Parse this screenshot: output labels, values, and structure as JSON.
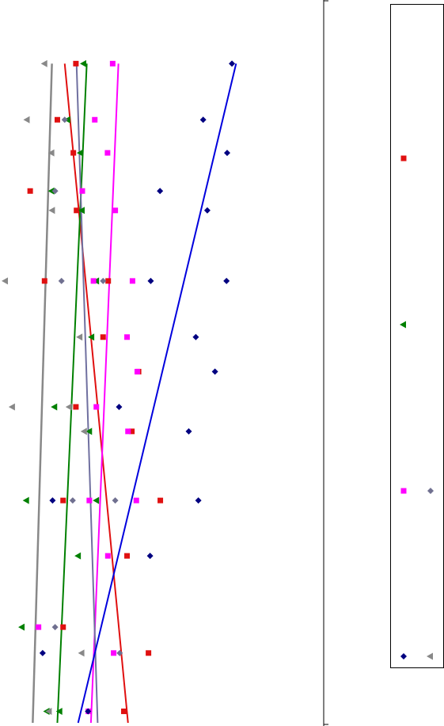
{
  "chart_data": {
    "type": "scatter",
    "title": "",
    "xlabel": "",
    "ylabel": "",
    "xlim": [
      0,
      100
    ],
    "ylim": [
      0,
      100
    ],
    "grid": false,
    "legend_position": "right",
    "series": [
      {
        "color": "#e01010",
        "marker": "square",
        "points": [
          [
            22.5,
            91.6
          ],
          [
            16.7,
            83.8
          ],
          [
            21.7,
            79.2
          ],
          [
            8.2,
            73.9
          ],
          [
            22.7,
            71.2
          ],
          [
            12.7,
            61.4
          ],
          [
            32.6,
            61.4
          ],
          [
            31.0,
            53.6
          ],
          [
            42.1,
            48.8
          ],
          [
            22.5,
            43.9
          ],
          [
            40.0,
            40.5
          ],
          [
            48.9,
            30.9
          ],
          [
            18.5,
            30.9
          ],
          [
            38.5,
            23.2
          ],
          [
            18.5,
            13.3
          ],
          [
            45.2,
            9.7
          ],
          [
            37.5,
            1.6
          ]
        ],
        "trend": [
          [
            19.0,
            91.6
          ],
          [
            38.8,
            0
          ]
        ]
      },
      {
        "color": "#008000",
        "marker": "triangle-left",
        "points": [
          [
            25.0,
            91.6
          ],
          [
            20.0,
            83.8
          ],
          [
            24.0,
            79.2
          ],
          [
            15.0,
            73.9
          ],
          [
            24.5,
            71.2
          ],
          [
            29.0,
            61.4
          ],
          [
            27.5,
            53.6
          ],
          [
            15.9,
            43.9
          ],
          [
            26.8,
            40.5
          ],
          [
            7.1,
            30.9
          ],
          [
            29.0,
            30.9
          ],
          [
            23.3,
            23.2
          ],
          [
            5.7,
            13.3
          ],
          [
            17.5,
            1.6
          ],
          [
            13.5,
            1.6
          ]
        ],
        "trend": [
          [
            25.9,
            91.6
          ],
          [
            16.7,
            0
          ]
        ]
      },
      {
        "color": "#ff00ff",
        "marker": "square",
        "points": [
          [
            34.0,
            91.6
          ],
          [
            28.4,
            83.8
          ],
          [
            32.4,
            79.2
          ],
          [
            24.5,
            73.9
          ],
          [
            34.8,
            71.2
          ],
          [
            28.0,
            61.4
          ],
          [
            40.2,
            61.4
          ],
          [
            38.5,
            53.6
          ],
          [
            41.7,
            48.8
          ],
          [
            28.9,
            43.9
          ],
          [
            38.8,
            40.5
          ],
          [
            26.7,
            30.9
          ],
          [
            41.4,
            30.9
          ],
          [
            32.5,
            23.2
          ],
          [
            10.8,
            13.3
          ],
          [
            34.3,
            9.7
          ],
          [
            26.4,
            1.6
          ]
        ],
        "trend": [
          [
            35.8,
            91.6
          ],
          [
            27.2,
            0
          ]
        ]
      },
      {
        "color": "#707090",
        "marker": "diamond",
        "points": [
          [
            19.0,
            83.8
          ],
          [
            16.0,
            73.9
          ],
          [
            18.0,
            61.4
          ],
          [
            31.0,
            61.4
          ],
          [
            21.5,
            30.9
          ],
          [
            34.8,
            30.9
          ],
          [
            16.0,
            13.3
          ],
          [
            36.2,
            9.7
          ]
        ],
        "trend": [
          [
            22.7,
            91.6
          ],
          [
            29.3,
            0
          ]
        ]
      },
      {
        "color": "#000080",
        "marker": "diamond",
        "points": [
          [
            71.3,
            91.6
          ],
          [
            62.3,
            83.8
          ],
          [
            69.8,
            79.2
          ],
          [
            48.8,
            73.9
          ],
          [
            63.6,
            71.2
          ],
          [
            45.9,
            61.4
          ],
          [
            69.6,
            61.4
          ],
          [
            60.0,
            53.6
          ],
          [
            66.0,
            48.8
          ],
          [
            36.0,
            43.9
          ],
          [
            57.8,
            40.5
          ],
          [
            15.2,
            30.9
          ],
          [
            60.8,
            30.9
          ],
          [
            45.7,
            23.2
          ],
          [
            12.1,
            9.7
          ],
          [
            26.3,
            1.6
          ]
        ],
        "trend": [
          [
            72.6,
            91.6
          ],
          [
            23.2,
            0
          ]
        ]
      },
      {
        "color": "#888888",
        "marker": "triangle-left",
        "points": [
          [
            12.8,
            91.6
          ],
          [
            7.3,
            83.8
          ],
          [
            15.0,
            79.2
          ],
          [
            15.2,
            71.2
          ],
          [
            0.5,
            61.4
          ],
          [
            23.8,
            53.6
          ],
          [
            2.7,
            43.9
          ],
          [
            20.5,
            43.9
          ],
          [
            25.2,
            40.5
          ],
          [
            24.4,
            9.7
          ],
          [
            14.2,
            1.6
          ]
        ],
        "trend": [
          [
            15.0,
            91.6
          ],
          [
            9.0,
            0
          ]
        ]
      }
    ],
    "legend_entries": [
      {
        "markers": [
          {
            "color": "#e01010",
            "marker": "square"
          }
        ]
      },
      {
        "markers": [
          {
            "color": "#008000",
            "marker": "triangle-left"
          }
        ]
      },
      {
        "markers": [
          {
            "color": "#ff00ff",
            "marker": "square"
          },
          {
            "color": "#707090",
            "marker": "diamond"
          }
        ]
      },
      {
        "markers": [
          {
            "color": "#000080",
            "marker": "diamond"
          },
          {
            "color": "#888888",
            "marker": "triangle-left"
          }
        ]
      }
    ]
  }
}
